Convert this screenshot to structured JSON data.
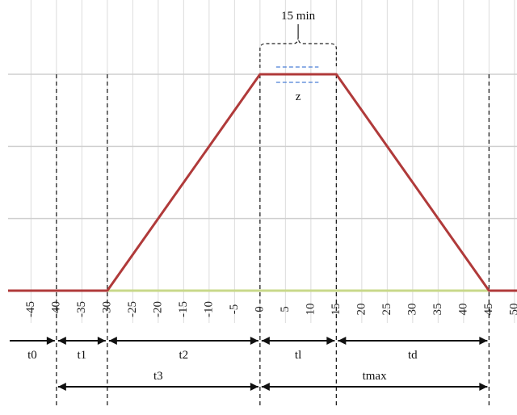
{
  "chart_data": {
    "type": "line",
    "x_ticks": [
      -45,
      -40,
      -35,
      -30,
      -25,
      -20,
      -15,
      -10,
      -5,
      0,
      5,
      10,
      15,
      20,
      25,
      30,
      35,
      40,
      45,
      50
    ],
    "xlim": [
      -49.5,
      50.5
    ],
    "ylim": [
      0,
      3
    ],
    "grid": true,
    "series": [
      {
        "x": [
          -49.5,
          -30,
          0,
          15,
          45,
          50.5
        ],
        "y": [
          0,
          0,
          3,
          3,
          0,
          0
        ],
        "color": "#b03a3a"
      }
    ],
    "annotations": {
      "duration_label": "15 min",
      "plateau_label": "z",
      "vertical_markers": [
        -40,
        -30,
        0,
        15,
        45
      ],
      "intervals_row1": [
        {
          "label": "t0",
          "from": -49.5,
          "to": -40
        },
        {
          "label": "t1",
          "from": -40,
          "to": -30
        },
        {
          "label": "t2",
          "from": -30,
          "to": 0
        },
        {
          "label": "tl",
          "from": 0,
          "to": 15
        },
        {
          "label": "td",
          "from": 15,
          "to": 45
        }
      ],
      "intervals_row2": [
        {
          "label": "t3",
          "from": -40,
          "to": 0
        },
        {
          "label": "tmax",
          "from": 0,
          "to": 45
        }
      ]
    },
    "colors": {
      "line": "#b03a3a",
      "baseline": "#c8d88a",
      "grid": "#cfcfcf",
      "plateau_dash": "#4a7fd6"
    }
  }
}
